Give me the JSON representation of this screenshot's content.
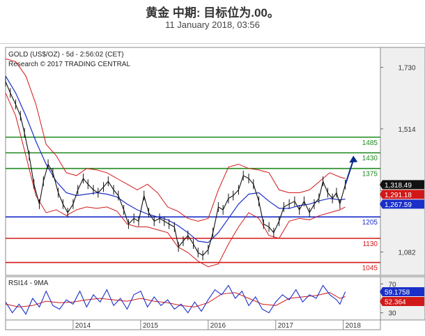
{
  "header": {
    "title": "黄金 中期: 目标位为.00。",
    "date": "11 January 2018, 03:56"
  },
  "chart_data": {
    "type": "line",
    "info_line1": "GOLD (US$/OZ) - 5d - 2:56:02 (CET)",
    "info_line2": "Research © 2017 TRADING CENTRAL",
    "price_ticks": [
      1730,
      1514,
      1298,
      1082
    ],
    "price_tick_labels": [
      "1,730",
      "1,514",
      "",
      "1,082"
    ],
    "price_range": [
      1000,
      1800
    ],
    "date_ticks": [
      {
        "label": "2014",
        "year": 2014.0
      },
      {
        "label": "2015",
        "year": 2015.0
      },
      {
        "label": "2016",
        "year": 2016.0
      },
      {
        "label": "2017",
        "year": 2017.0
      },
      {
        "label": "2018",
        "year": 2018.0
      }
    ],
    "x_range": [
      2013.0,
      2018.55
    ],
    "levels": [
      {
        "value": 1485,
        "label": "1485",
        "color": "#1f8a1f"
      },
      {
        "value": 1430,
        "label": "1430",
        "color": "#1f8a1f"
      },
      {
        "value": 1375,
        "label": "1375",
        "color": "#1f8a1f"
      },
      {
        "value": 1205,
        "label": "1205",
        "color": "#1a2fc8"
      },
      {
        "value": 1130,
        "label": "1130",
        "color": "#d11818"
      },
      {
        "value": 1045,
        "label": "1045",
        "color": "#d11818"
      }
    ],
    "last_values": [
      {
        "label": "1,318.49",
        "value": 1318.49,
        "color": "#111111"
      },
      {
        "label": "1,291.18",
        "value": 1291.18,
        "color": "#d11818"
      },
      {
        "label": "1,267.59",
        "value": 1267.59,
        "color": "#1a2fc8"
      }
    ],
    "price_series": [
      [
        2013.0,
        1680
      ],
      [
        2013.07,
        1640
      ],
      [
        2013.15,
        1600
      ],
      [
        2013.22,
        1560
      ],
      [
        2013.28,
        1500
      ],
      [
        2013.35,
        1420
      ],
      [
        2013.42,
        1320
      ],
      [
        2013.5,
        1250
      ],
      [
        2013.56,
        1330
      ],
      [
        2013.63,
        1390
      ],
      [
        2013.7,
        1360
      ],
      [
        2013.78,
        1290
      ],
      [
        2013.85,
        1250
      ],
      [
        2013.92,
        1220
      ],
      [
        2014.0,
        1250
      ],
      [
        2014.07,
        1300
      ],
      [
        2014.15,
        1340
      ],
      [
        2014.22,
        1320
      ],
      [
        2014.3,
        1300
      ],
      [
        2014.37,
        1290
      ],
      [
        2014.45,
        1310
      ],
      [
        2014.52,
        1330
      ],
      [
        2014.6,
        1300
      ],
      [
        2014.67,
        1280
      ],
      [
        2014.75,
        1230
      ],
      [
        2014.82,
        1180
      ],
      [
        2014.9,
        1200
      ],
      [
        2014.97,
        1190
      ],
      [
        2015.05,
        1280
      ],
      [
        2015.12,
        1220
      ],
      [
        2015.2,
        1190
      ],
      [
        2015.28,
        1200
      ],
      [
        2015.35,
        1190
      ],
      [
        2015.42,
        1180
      ],
      [
        2015.5,
        1170
      ],
      [
        2015.56,
        1100
      ],
      [
        2015.63,
        1120
      ],
      [
        2015.7,
        1140
      ],
      [
        2015.78,
        1110
      ],
      [
        2015.85,
        1080
      ],
      [
        2015.92,
        1070
      ],
      [
        2016.0,
        1090
      ],
      [
        2016.07,
        1150
      ],
      [
        2016.15,
        1240
      ],
      [
        2016.22,
        1230
      ],
      [
        2016.3,
        1270
      ],
      [
        2016.37,
        1280
      ],
      [
        2016.45,
        1300
      ],
      [
        2016.52,
        1350
      ],
      [
        2016.6,
        1340
      ],
      [
        2016.67,
        1320
      ],
      [
        2016.75,
        1260
      ],
      [
        2016.82,
        1180
      ],
      [
        2016.9,
        1170
      ],
      [
        2016.97,
        1150
      ],
      [
        2017.05,
        1190
      ],
      [
        2017.12,
        1240
      ],
      [
        2017.2,
        1250
      ],
      [
        2017.28,
        1260
      ],
      [
        2017.35,
        1230
      ],
      [
        2017.42,
        1260
      ],
      [
        2017.5,
        1220
      ],
      [
        2017.57,
        1250
      ],
      [
        2017.64,
        1270
      ],
      [
        2017.7,
        1330
      ],
      [
        2017.77,
        1290
      ],
      [
        2017.84,
        1270
      ],
      [
        2017.9,
        1290
      ],
      [
        2017.95,
        1250
      ],
      [
        2018.03,
        1318.49
      ]
    ],
    "ma_series": [
      [
        2013.0,
        1700
      ],
      [
        2013.15,
        1640
      ],
      [
        2013.3,
        1560
      ],
      [
        2013.45,
        1470
      ],
      [
        2013.6,
        1390
      ],
      [
        2013.75,
        1330
      ],
      [
        2013.9,
        1290
      ],
      [
        2014.05,
        1280
      ],
      [
        2014.2,
        1285
      ],
      [
        2014.35,
        1290
      ],
      [
        2014.5,
        1285
      ],
      [
        2014.65,
        1275
      ],
      [
        2014.8,
        1250
      ],
      [
        2014.95,
        1230
      ],
      [
        2015.1,
        1215
      ],
      [
        2015.25,
        1205
      ],
      [
        2015.4,
        1195
      ],
      [
        2015.55,
        1175
      ],
      [
        2015.7,
        1150
      ],
      [
        2015.85,
        1120
      ],
      [
        2016.0,
        1115
      ],
      [
        2016.15,
        1150
      ],
      [
        2016.3,
        1200
      ],
      [
        2016.45,
        1250
      ],
      [
        2016.6,
        1285
      ],
      [
        2016.75,
        1290
      ],
      [
        2016.9,
        1260
      ],
      [
        2017.05,
        1235
      ],
      [
        2017.2,
        1235
      ],
      [
        2017.35,
        1245
      ],
      [
        2017.5,
        1250
      ],
      [
        2017.65,
        1262
      ],
      [
        2017.8,
        1270
      ],
      [
        2017.95,
        1265
      ],
      [
        2018.03,
        1267.59
      ]
    ],
    "bb_upper": [
      [
        2013.0,
        1760
      ],
      [
        2013.15,
        1750
      ],
      [
        2013.3,
        1700
      ],
      [
        2013.45,
        1600
      ],
      [
        2013.6,
        1460
      ],
      [
        2013.75,
        1420
      ],
      [
        2013.9,
        1360
      ],
      [
        2014.05,
        1350
      ],
      [
        2014.2,
        1375
      ],
      [
        2014.35,
        1370
      ],
      [
        2014.5,
        1360
      ],
      [
        2014.65,
        1340
      ],
      [
        2014.8,
        1320
      ],
      [
        2014.95,
        1300
      ],
      [
        2015.1,
        1320
      ],
      [
        2015.25,
        1290
      ],
      [
        2015.4,
        1240
      ],
      [
        2015.55,
        1225
      ],
      [
        2015.7,
        1200
      ],
      [
        2015.85,
        1190
      ],
      [
        2016.0,
        1200
      ],
      [
        2016.15,
        1300
      ],
      [
        2016.3,
        1380
      ],
      [
        2016.45,
        1390
      ],
      [
        2016.6,
        1375
      ],
      [
        2016.75,
        1370
      ],
      [
        2016.9,
        1360
      ],
      [
        2017.05,
        1300
      ],
      [
        2017.2,
        1290
      ],
      [
        2017.35,
        1290
      ],
      [
        2017.5,
        1300
      ],
      [
        2017.65,
        1330
      ],
      [
        2017.8,
        1360
      ],
      [
        2017.95,
        1345
      ],
      [
        2018.03,
        1340
      ]
    ],
    "bb_lower": [
      [
        2013.0,
        1640
      ],
      [
        2013.15,
        1560
      ],
      [
        2013.3,
        1420
      ],
      [
        2013.45,
        1280
      ],
      [
        2013.6,
        1220
      ],
      [
        2013.75,
        1230
      ],
      [
        2013.9,
        1210
      ],
      [
        2014.05,
        1230
      ],
      [
        2014.2,
        1240
      ],
      [
        2014.35,
        1235
      ],
      [
        2014.5,
        1240
      ],
      [
        2014.65,
        1225
      ],
      [
        2014.8,
        1180
      ],
      [
        2014.95,
        1170
      ],
      [
        2015.1,
        1170
      ],
      [
        2015.25,
        1160
      ],
      [
        2015.4,
        1150
      ],
      [
        2015.55,
        1100
      ],
      [
        2015.7,
        1080
      ],
      [
        2015.85,
        1050
      ],
      [
        2016.0,
        1030
      ],
      [
        2016.15,
        1040
      ],
      [
        2016.3,
        1110
      ],
      [
        2016.45,
        1170
      ],
      [
        2016.6,
        1220
      ],
      [
        2016.75,
        1200
      ],
      [
        2016.9,
        1140
      ],
      [
        2017.05,
        1130
      ],
      [
        2017.2,
        1190
      ],
      [
        2017.35,
        1200
      ],
      [
        2017.5,
        1195
      ],
      [
        2017.65,
        1210
      ],
      [
        2017.8,
        1220
      ],
      [
        2017.95,
        1230
      ],
      [
        2018.03,
        1240
      ]
    ],
    "arrow": {
      "from": [
        2018.03,
        1318.49
      ],
      "to": [
        2018.15,
        1420
      ]
    },
    "rsi": {
      "label": "RSI14 - 9MA",
      "ticks": [
        70,
        30
      ],
      "range": [
        20,
        80
      ],
      "last_values": [
        {
          "label": "59.1758",
          "value": 59.1758,
          "color": "#1a2fc8"
        },
        {
          "label": "52.364",
          "value": 52.364,
          "color": "#d11818"
        }
      ],
      "rsi_series": [
        [
          2013.0,
          45
        ],
        [
          2013.1,
          30
        ],
        [
          2013.2,
          42
        ],
        [
          2013.3,
          28
        ],
        [
          2013.4,
          50
        ],
        [
          2013.5,
          38
        ],
        [
          2013.6,
          60
        ],
        [
          2013.7,
          40
        ],
        [
          2013.8,
          35
        ],
        [
          2013.9,
          48
        ],
        [
          2014.0,
          42
        ],
        [
          2014.1,
          60
        ],
        [
          2014.2,
          38
        ],
        [
          2014.3,
          55
        ],
        [
          2014.4,
          45
        ],
        [
          2014.5,
          62
        ],
        [
          2014.6,
          40
        ],
        [
          2014.7,
          50
        ],
        [
          2014.8,
          35
        ],
        [
          2014.9,
          55
        ],
        [
          2015.0,
          60
        ],
        [
          2015.1,
          38
        ],
        [
          2015.2,
          52
        ],
        [
          2015.3,
          40
        ],
        [
          2015.4,
          48
        ],
        [
          2015.5,
          35
        ],
        [
          2015.6,
          42
        ],
        [
          2015.7,
          30
        ],
        [
          2015.8,
          45
        ],
        [
          2015.9,
          32
        ],
        [
          2016.0,
          48
        ],
        [
          2016.1,
          62
        ],
        [
          2016.2,
          55
        ],
        [
          2016.3,
          68
        ],
        [
          2016.4,
          50
        ],
        [
          2016.5,
          60
        ],
        [
          2016.6,
          40
        ],
        [
          2016.7,
          52
        ],
        [
          2016.8,
          35
        ],
        [
          2016.9,
          30
        ],
        [
          2017.0,
          45
        ],
        [
          2017.1,
          55
        ],
        [
          2017.2,
          48
        ],
        [
          2017.3,
          62
        ],
        [
          2017.4,
          45
        ],
        [
          2017.5,
          55
        ],
        [
          2017.6,
          50
        ],
        [
          2017.7,
          68
        ],
        [
          2017.8,
          55
        ],
        [
          2017.9,
          48
        ],
        [
          2017.95,
          42
        ],
        [
          2018.03,
          59.1758
        ]
      ],
      "ma_series": [
        [
          2013.0,
          42
        ],
        [
          2013.2,
          38
        ],
        [
          2013.4,
          40
        ],
        [
          2013.6,
          46
        ],
        [
          2013.8,
          44
        ],
        [
          2014.0,
          45
        ],
        [
          2014.2,
          48
        ],
        [
          2014.4,
          50
        ],
        [
          2014.6,
          48
        ],
        [
          2014.8,
          46
        ],
        [
          2015.0,
          50
        ],
        [
          2015.2,
          46
        ],
        [
          2015.4,
          44
        ],
        [
          2015.6,
          40
        ],
        [
          2015.8,
          38
        ],
        [
          2016.0,
          44
        ],
        [
          2016.2,
          56
        ],
        [
          2016.4,
          58
        ],
        [
          2016.6,
          50
        ],
        [
          2016.8,
          42
        ],
        [
          2017.0,
          40
        ],
        [
          2017.2,
          50
        ],
        [
          2017.4,
          52
        ],
        [
          2017.6,
          54
        ],
        [
          2017.8,
          58
        ],
        [
          2017.95,
          50
        ],
        [
          2018.03,
          52.364
        ]
      ]
    },
    "colors": {
      "price": "#111111",
      "ma": "#1a2fc8",
      "bands": "#d11818",
      "arrow": "#0a2a8c",
      "panel_bg": "#ffffff",
      "right_bg": "#efefef"
    }
  }
}
